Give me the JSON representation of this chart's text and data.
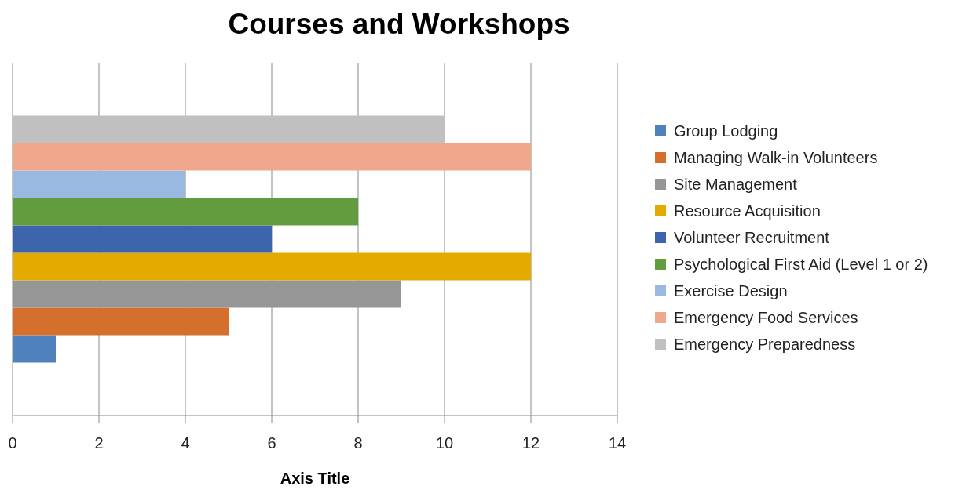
{
  "chart_data": {
    "type": "bar",
    "title": "Courses and Workshops",
    "xlabel": "Axis Title",
    "orientation": "horizontal",
    "categories": [
      null
    ],
    "series": [
      {
        "name": "Group Lodging",
        "color": "#4f81bd",
        "values": [
          1
        ]
      },
      {
        "name": "Managing Walk-in Volunteers",
        "color": "#d4702c",
        "values": [
          5
        ]
      },
      {
        "name": "Site Management",
        "color": "#969696",
        "values": [
          9
        ]
      },
      {
        "name": "Resource Acquisition",
        "color": "#e3ab00",
        "values": [
          12
        ]
      },
      {
        "name": "Volunteer Recruitment",
        "color": "#3d65ae",
        "values": [
          6
        ]
      },
      {
        "name": "Psychological First Aid (Level 1 or 2)",
        "color": "#629c3e",
        "values": [
          8
        ]
      },
      {
        "name": "Exercise Design",
        "color": "#9ab9e0",
        "values": [
          4
        ]
      },
      {
        "name": "Emergency Food Services",
        "color": "#f0a88c",
        "values": [
          12
        ]
      },
      {
        "name": "Emergency Preparedness",
        "color": "#c0c0c0",
        "values": [
          10
        ]
      }
    ],
    "xlim": [
      0,
      14
    ],
    "xticks": [
      0,
      2,
      4,
      6,
      8,
      10,
      12,
      14
    ],
    "grid": "x",
    "legend": "right"
  }
}
